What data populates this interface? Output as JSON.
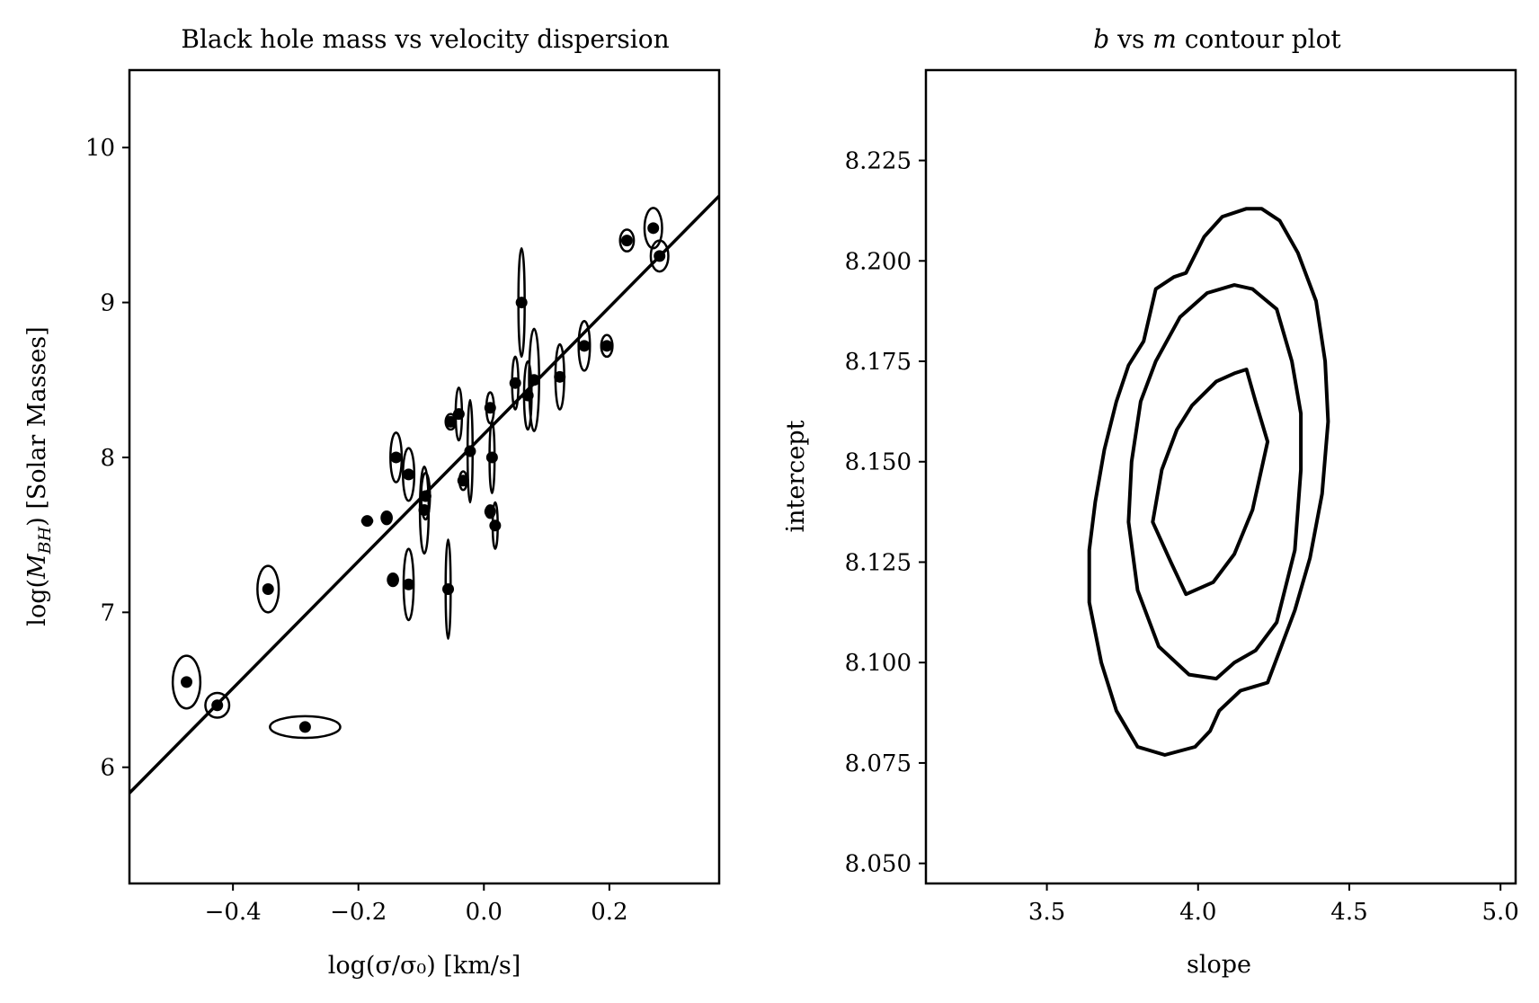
{
  "chart_data": [
    {
      "type": "scatter",
      "title": "Black hole mass vs velocity dispersion",
      "xlabel": "log(σ/σ₀) [km/s]",
      "ylabel": "log(M_BH) [Solar Masses]",
      "xlim": [
        -0.565,
        0.375
      ],
      "ylim": [
        5.25,
        10.5
      ],
      "xticks": [
        {
          "value": -0.4,
          "label": "−0.4"
        },
        {
          "value": -0.2,
          "label": "−0.2"
        },
        {
          "value": 0.0,
          "label": "0.0"
        },
        {
          "value": 0.2,
          "label": "0.2"
        }
      ],
      "yticks": [
        {
          "value": 6,
          "label": "6"
        },
        {
          "value": 7,
          "label": "7"
        },
        {
          "value": 8,
          "label": "8"
        },
        {
          "value": 9,
          "label": "9"
        },
        {
          "value": 10,
          "label": "10"
        }
      ],
      "fit_line": {
        "slope": 4.1,
        "intercept": 8.15
      },
      "points": [
        {
          "x": -0.474,
          "y": 6.55,
          "ex": 0.022,
          "ey": 0.17
        },
        {
          "x": -0.425,
          "y": 6.4,
          "ex": 0.019,
          "ey": 0.08
        },
        {
          "x": -0.344,
          "y": 7.15,
          "ex": 0.017,
          "ey": 0.15
        },
        {
          "x": -0.285,
          "y": 6.26,
          "ex": 0.056,
          "ey": 0.07
        },
        {
          "x": -0.186,
          "y": 7.59,
          "ex": 0.008,
          "ey": 0.02
        },
        {
          "x": -0.155,
          "y": 7.61,
          "ex": 0.008,
          "ey": 0.04
        },
        {
          "x": -0.145,
          "y": 7.21,
          "ex": 0.008,
          "ey": 0.04
        },
        {
          "x": -0.14,
          "y": 8.0,
          "ex": 0.009,
          "ey": 0.16
        },
        {
          "x": -0.12,
          "y": 7.89,
          "ex": 0.009,
          "ey": 0.17
        },
        {
          "x": -0.12,
          "y": 7.18,
          "ex": 0.008,
          "ey": 0.23
        },
        {
          "x": -0.095,
          "y": 7.66,
          "ex": 0.007,
          "ey": 0.28
        },
        {
          "x": -0.093,
          "y": 7.75,
          "ex": 0.007,
          "ey": 0.15
        },
        {
          "x": -0.057,
          "y": 7.15,
          "ex": 0.004,
          "ey": 0.32
        },
        {
          "x": -0.053,
          "y": 8.23,
          "ex": 0.008,
          "ey": 0.05
        },
        {
          "x": -0.04,
          "y": 8.28,
          "ex": 0.005,
          "ey": 0.17
        },
        {
          "x": -0.033,
          "y": 7.85,
          "ex": 0.006,
          "ey": 0.06
        },
        {
          "x": -0.022,
          "y": 8.04,
          "ex": 0.004,
          "ey": 0.33
        },
        {
          "x": 0.01,
          "y": 8.32,
          "ex": 0.006,
          "ey": 0.1
        },
        {
          "x": 0.01,
          "y": 7.65,
          "ex": 0.007,
          "ey": 0.04
        },
        {
          "x": 0.013,
          "y": 8.0,
          "ex": 0.004,
          "ey": 0.23
        },
        {
          "x": 0.018,
          "y": 7.56,
          "ex": 0.004,
          "ey": 0.15
        },
        {
          "x": 0.05,
          "y": 8.48,
          "ex": 0.005,
          "ey": 0.17
        },
        {
          "x": 0.06,
          "y": 9.0,
          "ex": 0.005,
          "ey": 0.35
        },
        {
          "x": 0.07,
          "y": 8.4,
          "ex": 0.006,
          "ey": 0.22
        },
        {
          "x": 0.08,
          "y": 8.5,
          "ex": 0.008,
          "ey": 0.33
        },
        {
          "x": 0.121,
          "y": 8.52,
          "ex": 0.007,
          "ey": 0.21
        },
        {
          "x": 0.16,
          "y": 8.72,
          "ex": 0.009,
          "ey": 0.16
        },
        {
          "x": 0.196,
          "y": 8.72,
          "ex": 0.009,
          "ey": 0.07
        },
        {
          "x": 0.228,
          "y": 9.4,
          "ex": 0.011,
          "ey": 0.07
        },
        {
          "x": 0.27,
          "y": 9.48,
          "ex": 0.014,
          "ey": 0.13
        },
        {
          "x": 0.28,
          "y": 9.3,
          "ex": 0.014,
          "ey": 0.1
        }
      ]
    },
    {
      "type": "contour",
      "title": "b vs m contour plot",
      "xlabel": "slope",
      "ylabel": "intercept",
      "xlim": [
        3.1,
        5.05
      ],
      "ylim": [
        8.045,
        8.2475
      ],
      "xticks": [
        {
          "value": 3.5,
          "label": "3.5"
        },
        {
          "value": 4.0,
          "label": "4.0"
        },
        {
          "value": 4.5,
          "label": "4.5"
        },
        {
          "value": 5.0,
          "label": "5.0"
        }
      ],
      "yticks": [
        {
          "value": 8.05,
          "label": "8.050"
        },
        {
          "value": 8.075,
          "label": "8.075"
        },
        {
          "value": 8.1,
          "label": "8.100"
        },
        {
          "value": 8.125,
          "label": "8.125"
        },
        {
          "value": 8.15,
          "label": "8.150"
        },
        {
          "value": 8.175,
          "label": "8.175"
        },
        {
          "value": 8.2,
          "label": "8.200"
        },
        {
          "value": 8.225,
          "label": "8.225"
        }
      ],
      "contours": [
        [
          [
            4.12,
            8.172
          ],
          [
            4.16,
            8.173
          ],
          [
            4.19,
            8.165
          ],
          [
            4.23,
            8.155
          ],
          [
            4.18,
            8.138
          ],
          [
            4.12,
            8.127
          ],
          [
            4.05,
            8.12
          ],
          [
            3.96,
            8.117
          ],
          [
            3.91,
            8.125
          ],
          [
            3.85,
            8.135
          ],
          [
            3.88,
            8.148
          ],
          [
            3.93,
            8.158
          ],
          [
            3.98,
            8.164
          ],
          [
            4.06,
            8.17
          ],
          [
            4.12,
            8.172
          ]
        ],
        [
          [
            4.12,
            8.194
          ],
          [
            4.18,
            8.193
          ],
          [
            4.26,
            8.188
          ],
          [
            4.31,
            8.175
          ],
          [
            4.34,
            8.162
          ],
          [
            4.34,
            8.148
          ],
          [
            4.32,
            8.128
          ],
          [
            4.26,
            8.11
          ],
          [
            4.19,
            8.103
          ],
          [
            4.12,
            8.1
          ],
          [
            4.06,
            8.096
          ],
          [
            3.97,
            8.097
          ],
          [
            3.87,
            8.104
          ],
          [
            3.8,
            8.118
          ],
          [
            3.77,
            8.135
          ],
          [
            3.78,
            8.15
          ],
          [
            3.81,
            8.165
          ],
          [
            3.86,
            8.175
          ],
          [
            3.94,
            8.186
          ],
          [
            4.03,
            8.192
          ],
          [
            4.12,
            8.194
          ]
        ],
        [
          [
            4.16,
            8.213
          ],
          [
            4.21,
            8.213
          ],
          [
            4.27,
            8.21
          ],
          [
            4.33,
            8.202
          ],
          [
            4.39,
            8.19
          ],
          [
            4.42,
            8.175
          ],
          [
            4.43,
            8.16
          ],
          [
            4.41,
            8.142
          ],
          [
            4.37,
            8.126
          ],
          [
            4.32,
            8.113
          ],
          [
            4.27,
            8.103
          ],
          [
            4.23,
            8.095
          ],
          [
            4.14,
            8.093
          ],
          [
            4.07,
            8.088
          ],
          [
            4.04,
            8.083
          ],
          [
            3.99,
            8.079
          ],
          [
            3.89,
            8.077
          ],
          [
            3.8,
            8.079
          ],
          [
            3.73,
            8.088
          ],
          [
            3.68,
            8.1
          ],
          [
            3.64,
            8.115
          ],
          [
            3.64,
            8.128
          ],
          [
            3.66,
            8.14
          ],
          [
            3.69,
            8.153
          ],
          [
            3.73,
            8.165
          ],
          [
            3.77,
            8.174
          ],
          [
            3.82,
            8.18
          ],
          [
            3.86,
            8.193
          ],
          [
            3.92,
            8.196
          ],
          [
            3.96,
            8.197
          ],
          [
            4.02,
            8.206
          ],
          [
            4.08,
            8.211
          ],
          [
            4.16,
            8.213
          ]
        ]
      ]
    }
  ]
}
